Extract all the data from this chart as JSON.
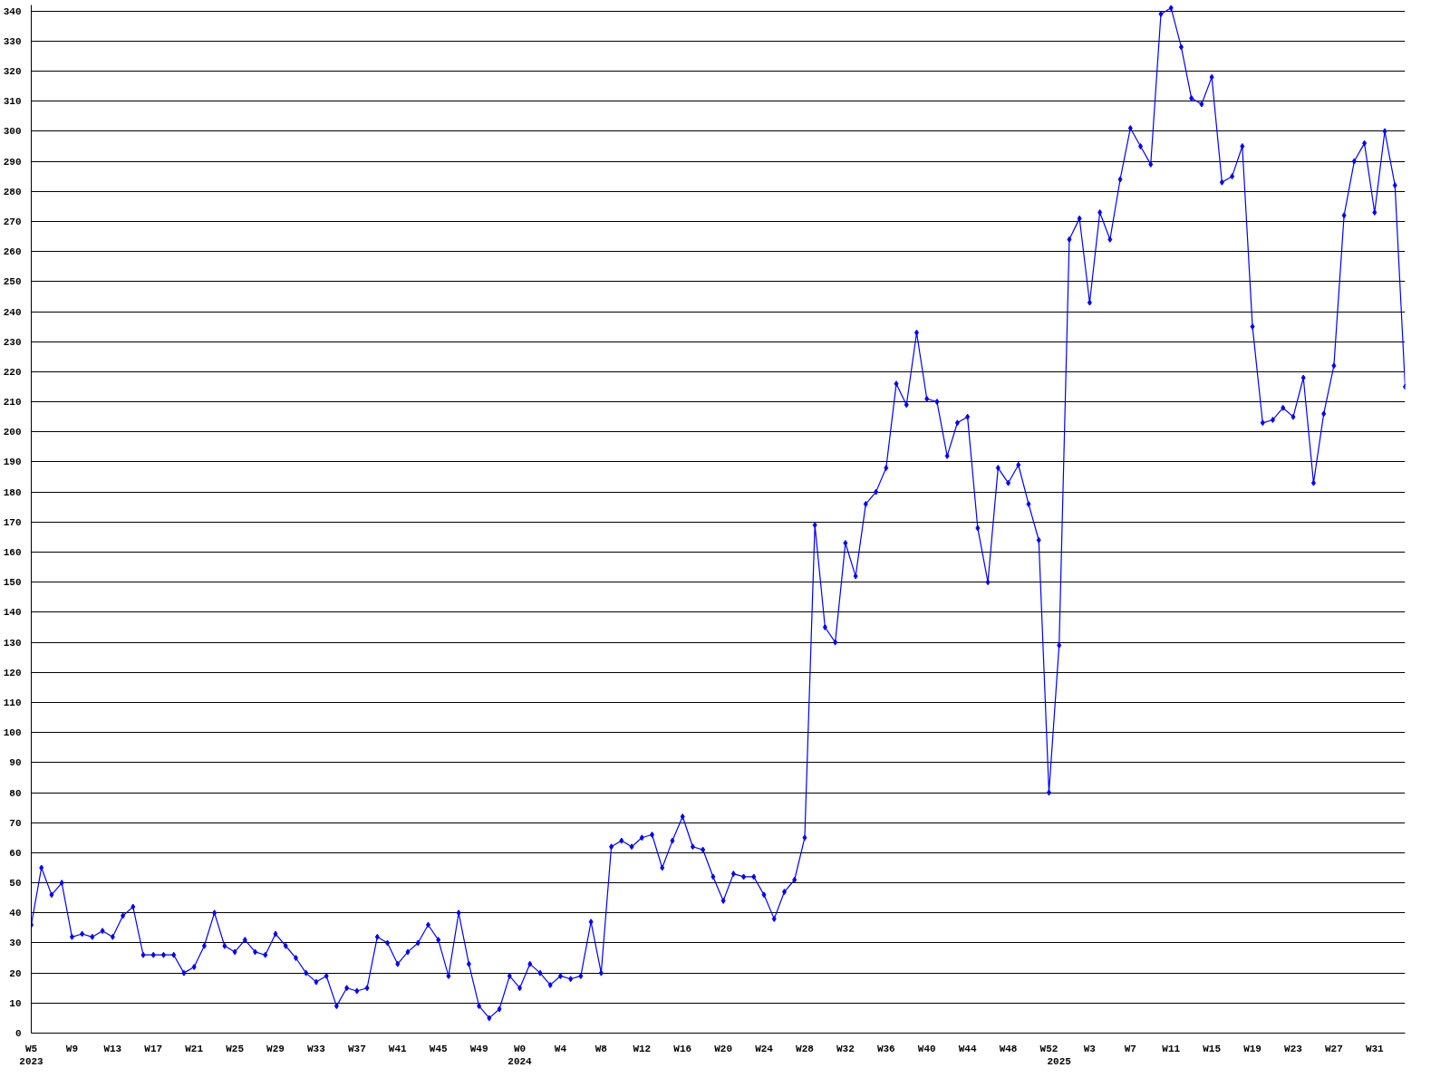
{
  "chart_data": {
    "type": "line",
    "categories": [
      "W5\n2023",
      null,
      null,
      null,
      "W9",
      null,
      null,
      null,
      "W13",
      null,
      null,
      null,
      "W17",
      null,
      null,
      null,
      "W21",
      null,
      null,
      null,
      "W25",
      null,
      null,
      null,
      "W29",
      null,
      null,
      null,
      "W33",
      null,
      null,
      null,
      "W37",
      null,
      null,
      null,
      "W41",
      null,
      null,
      null,
      "W45",
      null,
      null,
      null,
      "W49",
      null,
      null,
      null,
      "W0\n2024",
      null,
      null,
      null,
      "W4",
      null,
      null,
      null,
      "W8",
      null,
      null,
      null,
      "W12",
      null,
      null,
      null,
      "W16",
      null,
      null,
      null,
      "W20",
      null,
      null,
      null,
      "W24",
      null,
      null,
      null,
      "W28",
      null,
      null,
      null,
      "W32",
      null,
      null,
      null,
      "W36",
      null,
      null,
      null,
      "W40",
      null,
      null,
      null,
      "W44",
      null,
      null,
      null,
      "W48",
      null,
      null,
      null,
      "W52",
      "\n2025",
      null,
      null,
      "W3",
      null,
      null,
      null,
      "W7",
      null,
      null,
      null,
      "W11",
      null,
      null,
      null,
      "W15",
      null,
      null,
      null,
      "W19",
      null,
      null,
      null,
      "W23",
      null,
      null,
      null,
      "W27",
      null,
      null,
      null,
      "W31",
      null,
      null,
      null
    ],
    "series": [
      {
        "color": "#0000ff",
        "values": [
          36,
          55,
          46,
          50,
          32,
          33,
          32,
          34,
          32,
          39,
          42,
          26,
          26,
          26,
          26,
          20,
          22,
          29,
          40,
          29,
          27,
          31,
          27,
          26,
          33,
          29,
          25,
          20,
          17,
          19,
          9,
          15,
          14,
          15,
          32,
          30,
          23,
          27,
          30,
          36,
          31,
          19,
          40,
          23,
          9,
          5,
          8,
          19,
          15,
          23,
          20,
          16,
          19,
          18,
          19,
          37,
          20,
          62,
          64,
          62,
          65,
          66,
          55,
          64,
          72,
          62,
          61,
          52,
          44,
          53,
          52,
          52,
          46,
          38,
          47,
          51,
          65,
          169,
          135,
          130,
          163,
          152,
          176,
          180,
          188,
          216,
          209,
          233,
          211,
          210,
          192,
          203,
          205,
          168,
          150,
          188,
          183,
          189,
          176,
          164,
          80,
          129,
          264,
          271,
          243,
          273,
          264,
          284,
          301,
          295,
          289,
          339,
          341,
          328,
          311,
          309,
          318,
          283,
          285,
          295,
          235,
          203,
          204,
          208,
          205,
          218,
          183,
          206,
          222,
          272,
          290,
          296,
          273,
          300,
          282,
          215
        ]
      }
    ],
    "ylim": [
      0,
      342
    ],
    "yticks": [
      0,
      10,
      20,
      30,
      40,
      50,
      60,
      70,
      80,
      90,
      100,
      110,
      120,
      130,
      140,
      150,
      160,
      170,
      180,
      190,
      200,
      210,
      220,
      230,
      240,
      250,
      260,
      270,
      280,
      290,
      300,
      310,
      320,
      330,
      340
    ],
    "grid": "y",
    "marker": "diamond",
    "line_style": "solid"
  }
}
